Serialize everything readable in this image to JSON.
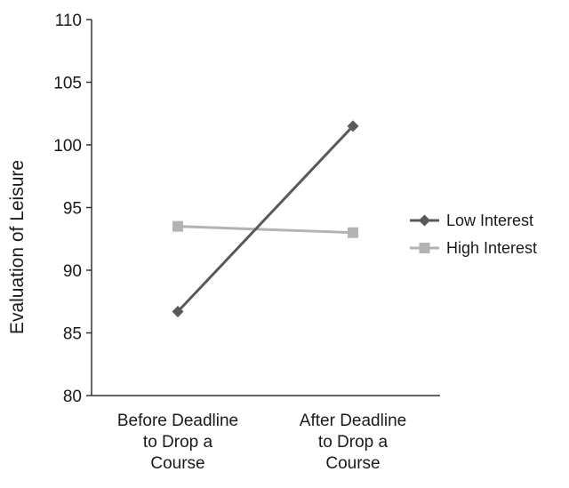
{
  "chart_data": {
    "type": "line",
    "categories": [
      [
        "Before Deadline",
        "to Drop a",
        "Course"
      ],
      [
        "After Deadline",
        "to Drop a",
        "Course"
      ]
    ],
    "series": [
      {
        "name": "Low Interest",
        "values": [
          86.7,
          101.5
        ],
        "color": "#595959",
        "marker": "diamond"
      },
      {
        "name": "High Interest",
        "values": [
          93.5,
          93.0
        ],
        "color": "#b3b3b3",
        "marker": "square"
      }
    ],
    "ylabel": "Evaluation of Leisure",
    "xlabel": "",
    "ylim": [
      80,
      110
    ],
    "yticks": [
      "80",
      "85",
      "90",
      "95",
      "100",
      "105",
      "110"
    ],
    "grid": false,
    "legend_position": "right"
  }
}
